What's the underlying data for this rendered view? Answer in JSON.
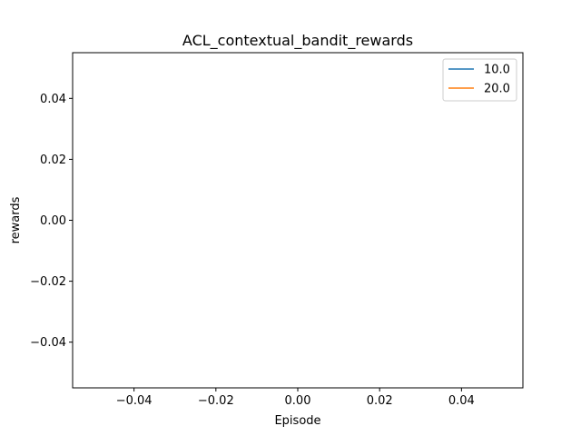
{
  "chart_data": {
    "type": "line",
    "title": "ACL_contextual_bandit_rewards",
    "xlabel": "Episode",
    "ylabel": "rewards",
    "xlim": [
      -0.055,
      0.055
    ],
    "ylim": [
      -0.055,
      0.055
    ],
    "x_ticks": [
      -0.04,
      -0.02,
      0.0,
      0.02,
      0.04
    ],
    "x_tick_labels": [
      "−0.04",
      "−0.02",
      "0.00",
      "0.02",
      "0.04"
    ],
    "y_ticks": [
      -0.04,
      -0.02,
      0.0,
      0.02,
      0.04
    ],
    "y_tick_labels": [
      "−0.04",
      "−0.02",
      "0.00",
      "0.02",
      "0.04"
    ],
    "grid": false,
    "legend_position": "top-right",
    "series": [
      {
        "name": "10.0",
        "color": "#1f77b4",
        "x": [],
        "y": []
      },
      {
        "name": "20.0",
        "color": "#ff7f0e",
        "x": [],
        "y": []
      }
    ]
  }
}
